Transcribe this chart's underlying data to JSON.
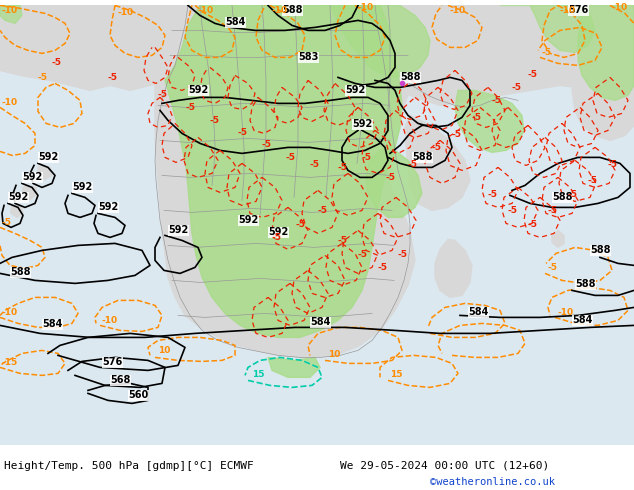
{
  "title_left": "Height/Temp. 500 hPa [gdmp][°C] ECMWF",
  "title_right": "We 29-05-2024 00:00 UTC (12+60)",
  "watermark": "©weatheronline.co.uk",
  "bg_ocean": "#dce8f0",
  "bg_land": "#d8d8d8",
  "green_high": "#a8dc88",
  "black_contour": "#000000",
  "red_temp": "#ee2200",
  "orange_temp": "#ff8c00",
  "teal_temp": "#00ccaa",
  "gray_border": "#999999",
  "white": "#ffffff",
  "blue_link": "#1144cc",
  "font_mono": "monospace"
}
